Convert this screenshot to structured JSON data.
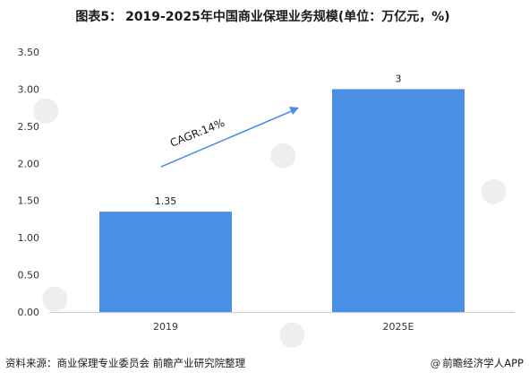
{
  "title": {
    "prefix": "图表5：",
    "text": "2019-2025年中国商业保理业务规模(单位：万亿元，%)"
  },
  "chart_data": {
    "type": "bar",
    "categories": [
      "2019",
      "2025E"
    ],
    "values": [
      1.35,
      3
    ],
    "data_labels": [
      "1.35",
      "3"
    ],
    "ylim": [
      0,
      3.5
    ],
    "yticks": [
      "0.00",
      "0.50",
      "1.00",
      "1.50",
      "2.00",
      "2.50",
      "3.00",
      "3.50"
    ],
    "annotation": "CAGR:14%",
    "bar_color": "#4a8ee6",
    "grid": false
  },
  "footer": {
    "source": "资料来源：商业保理专业委员会 前瞻产业研究院整理",
    "brand": "前瞻经济学人APP"
  }
}
